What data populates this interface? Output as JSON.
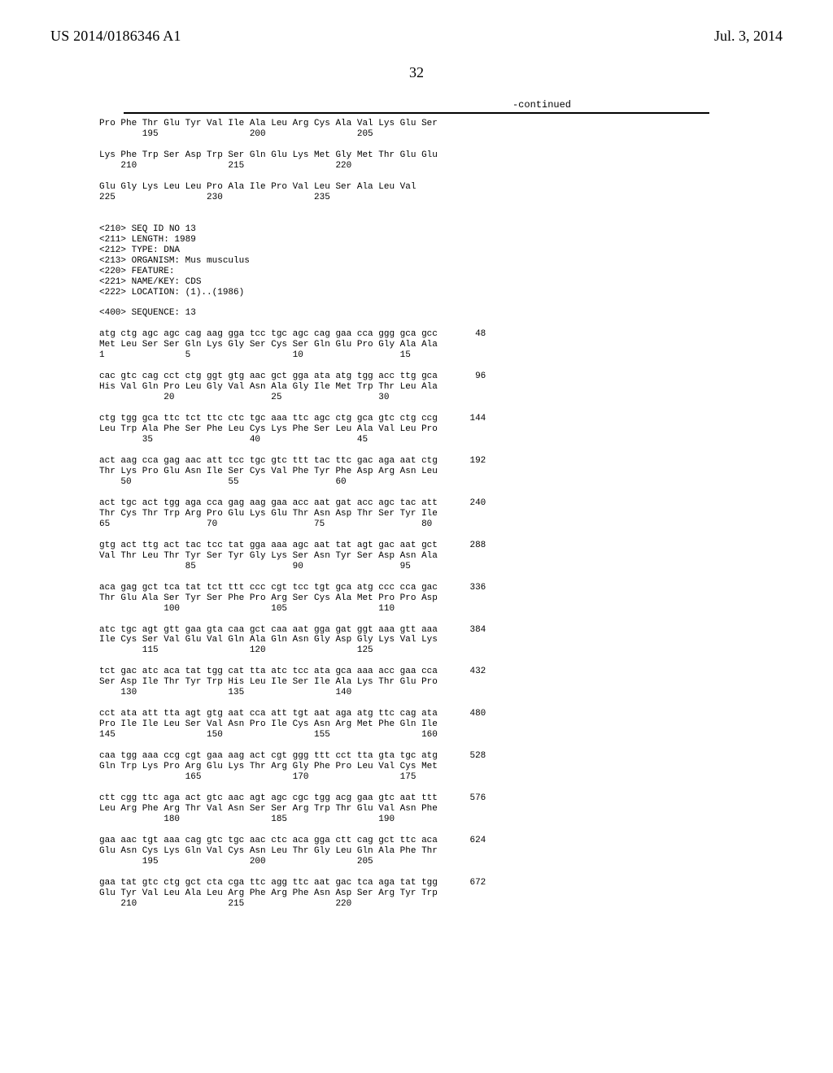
{
  "header": {
    "pubnum": "US 2014/0186346 A1",
    "pubdate": "Jul. 3, 2014"
  },
  "pagenum": "32",
  "continued": "-continued",
  "seq_text": "Pro Phe Thr Glu Tyr Val Ile Ala Leu Arg Cys Ala Val Lys Glu Ser\n        195                 200                 205\n\nLys Phe Trp Ser Asp Trp Ser Gln Glu Lys Met Gly Met Thr Glu Glu\n    210                 215                 220\n\nGlu Gly Lys Leu Leu Pro Ala Ile Pro Val Leu Ser Ala Leu Val\n225                 230                 235\n\n\n<210> SEQ ID NO 13\n<211> LENGTH: 1989\n<212> TYPE: DNA\n<213> ORGANISM: Mus musculus\n<220> FEATURE:\n<221> NAME/KEY: CDS\n<222> LOCATION: (1)..(1986)\n\n<400> SEQUENCE: 13\n\natg ctg agc agc cag aag gga tcc tgc agc cag gaa cca ggg gca gcc       48\nMet Leu Ser Ser Gln Lys Gly Ser Cys Ser Gln Glu Pro Gly Ala Ala\n1               5                   10                  15\n\ncac gtc cag cct ctg ggt gtg aac gct gga ata atg tgg acc ttg gca       96\nHis Val Gln Pro Leu Gly Val Asn Ala Gly Ile Met Trp Thr Leu Ala\n            20                  25                  30\n\nctg tgg gca ttc tct ttc ctc tgc aaa ttc agc ctg gca gtc ctg ccg      144\nLeu Trp Ala Phe Ser Phe Leu Cys Lys Phe Ser Leu Ala Val Leu Pro\n        35                  40                  45\n\nact aag cca gag aac att tcc tgc gtc ttt tac ttc gac aga aat ctg      192\nThr Lys Pro Glu Asn Ile Ser Cys Val Phe Tyr Phe Asp Arg Asn Leu\n    50                  55                  60\n\nact tgc act tgg aga cca gag aag gaa acc aat gat acc agc tac att      240\nThr Cys Thr Trp Arg Pro Glu Lys Glu Thr Asn Asp Thr Ser Tyr Ile\n65                  70                  75                  80\n\ngtg act ttg act tac tcc tat gga aaa agc aat tat agt gac aat gct      288\nVal Thr Leu Thr Tyr Ser Tyr Gly Lys Ser Asn Tyr Ser Asp Asn Ala\n                85                  90                  95\n\naca gag gct tca tat tct ttt ccc cgt tcc tgt gca atg ccc cca gac      336\nThr Glu Ala Ser Tyr Ser Phe Pro Arg Ser Cys Ala Met Pro Pro Asp\n            100                 105                 110\n\natc tgc agt gtt gaa gta caa gct caa aat gga gat ggt aaa gtt aaa      384\nIle Cys Ser Val Glu Val Gln Ala Gln Asn Gly Asp Gly Lys Val Lys\n        115                 120                 125\n\ntct gac atc aca tat tgg cat tta atc tcc ata gca aaa acc gaa cca      432\nSer Asp Ile Thr Tyr Trp His Leu Ile Ser Ile Ala Lys Thr Glu Pro\n    130                 135                 140\n\ncct ata att tta agt gtg aat cca att tgt aat aga atg ttc cag ata      480\nPro Ile Ile Leu Ser Val Asn Pro Ile Cys Asn Arg Met Phe Gln Ile\n145                 150                 155                 160\n\ncaa tgg aaa ccg cgt gaa aag act cgt ggg ttt cct tta gta tgc atg      528\nGln Trp Lys Pro Arg Glu Lys Thr Arg Gly Phe Pro Leu Val Cys Met\n                165                 170                 175\n\nctt cgg ttc aga act gtc aac agt agc cgc tgg acg gaa gtc aat ttt      576\nLeu Arg Phe Arg Thr Val Asn Ser Ser Arg Trp Thr Glu Val Asn Phe\n            180                 185                 190\n\ngaa aac tgt aaa cag gtc tgc aac ctc aca gga ctt cag gct ttc aca      624\nGlu Asn Cys Lys Gln Val Cys Asn Leu Thr Gly Leu Gln Ala Phe Thr\n        195                 200                 205\n\ngaa tat gtc ctg gct cta cga ttc agg ttc aat gac tca aga tat tgg      672\nGlu Tyr Val Leu Ala Leu Arg Phe Arg Phe Asn Asp Ser Arg Tyr Trp\n    210                 215                 220"
}
